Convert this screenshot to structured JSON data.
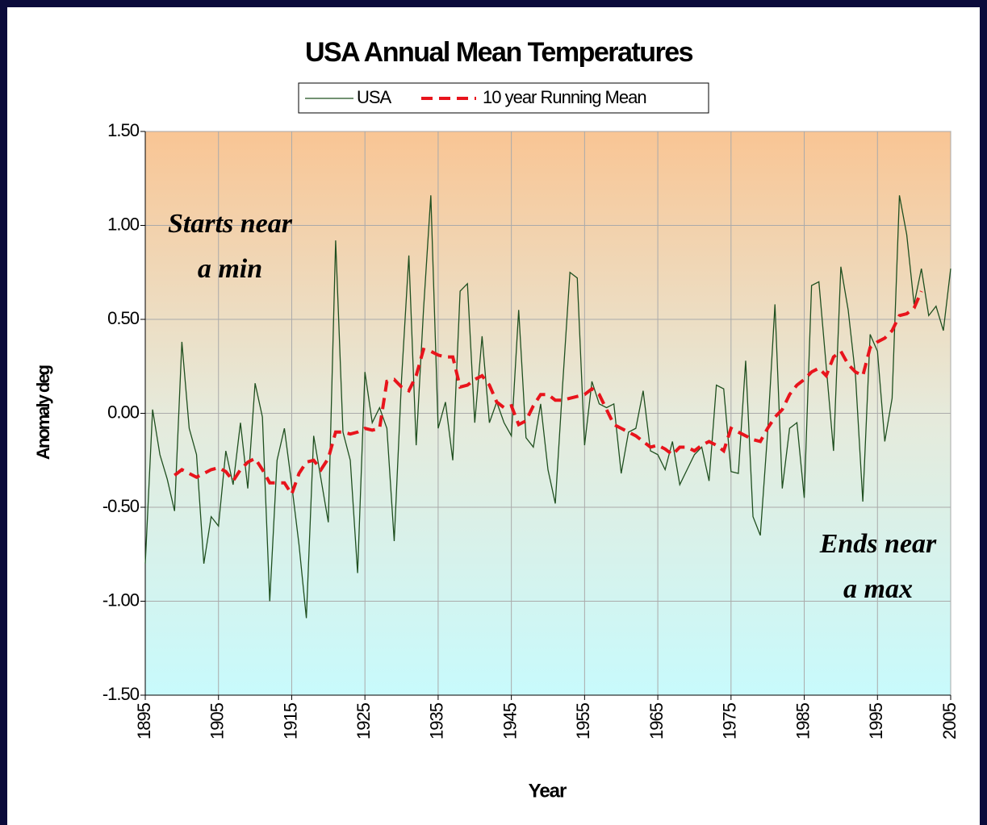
{
  "chart_data": {
    "type": "line",
    "title": "USA Annual Mean Temperatures",
    "x_label": "Year",
    "y_label": "Anomaly deg",
    "annotations": [
      {
        "lines": [
          "Starts near",
          "a min"
        ]
      },
      {
        "lines": [
          "Ends near",
          "a max"
        ]
      }
    ],
    "xlim": [
      1895,
      2005
    ],
    "xticks": [
      1895,
      1905,
      1915,
      1925,
      1935,
      1945,
      1955,
      1965,
      1975,
      1985,
      1995,
      2005
    ],
    "ylim": [
      -1.5,
      1.5
    ],
    "yticks": [
      {
        "value": 1.5,
        "label": "1.50"
      },
      {
        "value": 1,
        "label": "1.00"
      },
      {
        "value": 0.5,
        "label": "0.50"
      },
      {
        "value": 0,
        "label": "0.00"
      },
      {
        "value": -0.5,
        "label": "-0.50"
      },
      {
        "value": -1,
        "label": "-1.00"
      },
      {
        "value": -1.5,
        "label": "-1.50"
      }
    ],
    "grid": true,
    "legend": "top",
    "x": [
      1895,
      1896,
      1897,
      1898,
      1899,
      1900,
      1901,
      1902,
      1903,
      1904,
      1905,
      1906,
      1907,
      1908,
      1909,
      1910,
      1911,
      1912,
      1913,
      1914,
      1915,
      1916,
      1917,
      1918,
      1919,
      1920,
      1921,
      1922,
      1923,
      1924,
      1925,
      1926,
      1927,
      1928,
      1929,
      1930,
      1931,
      1932,
      1933,
      1934,
      1935,
      1936,
      1937,
      1938,
      1939,
      1940,
      1941,
      1942,
      1943,
      1944,
      1945,
      1946,
      1947,
      1948,
      1949,
      1950,
      1951,
      1952,
      1953,
      1954,
      1955,
      1956,
      1957,
      1958,
      1959,
      1960,
      1961,
      1962,
      1963,
      1964,
      1965,
      1966,
      1967,
      1968,
      1969,
      1970,
      1971,
      1972,
      1973,
      1974,
      1975,
      1976,
      1977,
      1978,
      1979,
      1980,
      1981,
      1982,
      1983,
      1984,
      1985,
      1986,
      1987,
      1988,
      1989,
      1990,
      1991,
      1992,
      1993,
      1994,
      1995,
      1996,
      1997,
      1998,
      1999,
      2000,
      2001,
      2002,
      2003,
      2004,
      2005
    ],
    "series": [
      {
        "name": "USA",
        "color": "#1f4f1f",
        "dashed": false,
        "values": [
          -0.8,
          0.02,
          -0.22,
          -0.35,
          -0.52,
          0.38,
          -0.08,
          -0.22,
          -0.8,
          -0.55,
          -0.6,
          -0.2,
          -0.38,
          -0.05,
          -0.4,
          0.16,
          -0.02,
          -1.0,
          -0.25,
          -0.08,
          -0.38,
          -0.7,
          -1.09,
          -0.12,
          -0.35,
          -0.58,
          0.92,
          -0.1,
          -0.25,
          -0.85,
          0.22,
          -0.05,
          0.03,
          -0.08,
          -0.68,
          0.18,
          0.84,
          -0.17,
          0.55,
          1.16,
          -0.08,
          0.06,
          -0.25,
          0.65,
          0.69,
          -0.05,
          0.41,
          -0.05,
          0.06,
          -0.05,
          -0.12,
          0.55,
          -0.13,
          -0.18,
          0.05,
          -0.3,
          -0.48,
          0.15,
          0.75,
          0.72,
          -0.17,
          0.17,
          0.05,
          0.03,
          0.05,
          -0.32,
          -0.1,
          -0.08,
          0.12,
          -0.2,
          -0.22,
          -0.3,
          -0.15,
          -0.38,
          -0.3,
          -0.22,
          -0.18,
          -0.36,
          0.15,
          0.13,
          -0.31,
          -0.32,
          0.28,
          -0.55,
          -0.65,
          -0.1,
          0.58,
          -0.4,
          -0.08,
          -0.05,
          -0.45,
          0.68,
          0.7,
          0.25,
          -0.2,
          0.78,
          0.55,
          0.2,
          -0.47,
          0.42,
          0.33,
          -0.15,
          0.08,
          1.16,
          0.95,
          0.58,
          0.77,
          0.52,
          0.57,
          0.44,
          0.77
        ]
      },
      {
        "name": "10 year Running Mean",
        "color": "#e8141c",
        "dashed": true,
        "values": [
          null,
          null,
          null,
          null,
          -0.33,
          -0.3,
          -0.32,
          -0.34,
          -0.32,
          -0.3,
          -0.29,
          -0.31,
          -0.36,
          -0.3,
          -0.26,
          -0.24,
          -0.3,
          -0.37,
          -0.37,
          -0.37,
          -0.43,
          -0.32,
          -0.26,
          -0.25,
          -0.3,
          -0.24,
          -0.1,
          -0.1,
          -0.11,
          -0.1,
          -0.08,
          -0.09,
          -0.08,
          0.17,
          0.18,
          0.14,
          0.12,
          0.2,
          0.34,
          0.33,
          0.31,
          0.3,
          0.3,
          0.14,
          0.15,
          0.18,
          0.2,
          0.15,
          0.06,
          0.03,
          0.04,
          -0.06,
          -0.04,
          0.04,
          0.1,
          0.1,
          0.07,
          0.07,
          0.08,
          0.09,
          0.1,
          0.13,
          0.1,
          0.02,
          -0.06,
          -0.08,
          -0.1,
          -0.12,
          -0.15,
          -0.18,
          -0.17,
          -0.19,
          -0.22,
          -0.18,
          -0.18,
          -0.2,
          -0.17,
          -0.15,
          -0.17,
          -0.2,
          -0.08,
          -0.1,
          -0.12,
          -0.14,
          -0.15,
          -0.08,
          -0.02,
          0.02,
          0.1,
          0.15,
          0.18,
          0.22,
          0.24,
          0.2,
          0.3,
          0.33,
          0.26,
          0.22,
          0.2,
          0.35,
          0.38,
          0.4,
          0.44,
          0.52,
          0.53,
          0.56,
          0.65,
          null,
          null,
          null,
          null
        ]
      }
    ]
  }
}
